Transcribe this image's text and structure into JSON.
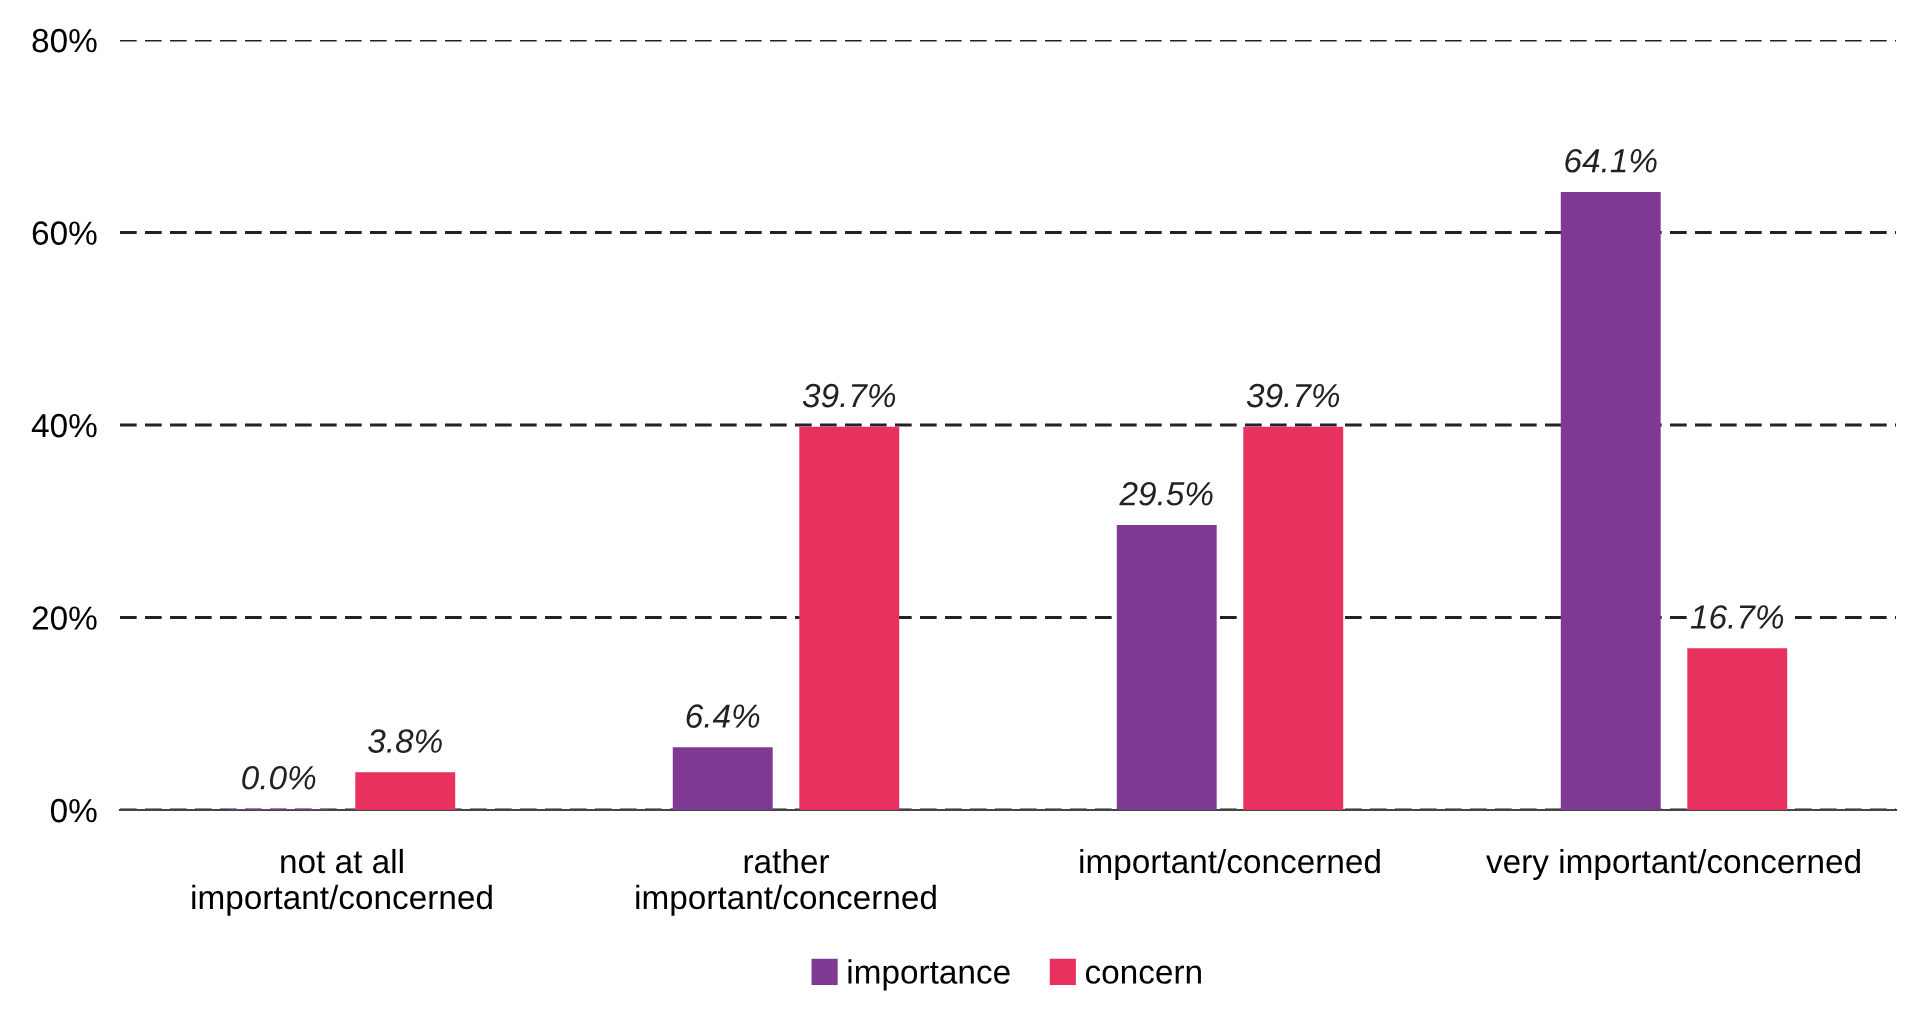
{
  "chart_data": {
    "type": "bar",
    "categories": [
      "not at all\nimportant/concerned",
      "rather\nimportant/concerned",
      "important/concerned",
      "very important/concerned"
    ],
    "series": [
      {
        "name": "importance",
        "color": "#7e3a93",
        "values": [
          0.0,
          6.4,
          29.5,
          64.1
        ],
        "value_labels": [
          "0.0%",
          "6.4%",
          "29.5%",
          "64.1%"
        ]
      },
      {
        "name": "concern",
        "color": "#e8315f",
        "values": [
          3.8,
          39.7,
          39.7,
          16.7
        ],
        "value_labels": [
          "3.8%",
          "39.7%",
          "39.7%",
          "16.7%"
        ]
      }
    ],
    "ylim": [
      0,
      80
    ],
    "yticks": [
      {
        "value": 0,
        "label": "0%"
      },
      {
        "value": 20,
        "label": "20%"
      },
      {
        "value": 40,
        "label": "40%"
      },
      {
        "value": 60,
        "label": "60%"
      },
      {
        "value": 80,
        "label": "80%"
      }
    ],
    "grid": "y",
    "line_style": "dashed",
    "legend": "bottom"
  }
}
